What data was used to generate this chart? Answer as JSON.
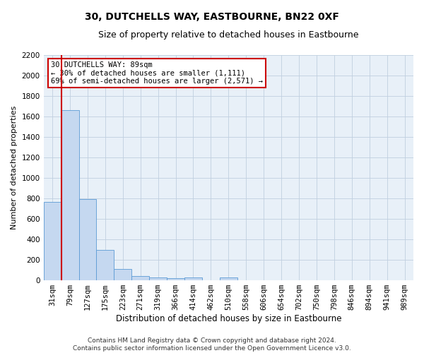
{
  "title": "30, DUTCHELLS WAY, EASTBOURNE, BN22 0XF",
  "subtitle": "Size of property relative to detached houses in Eastbourne",
  "xlabel": "Distribution of detached houses by size in Eastbourne",
  "ylabel": "Number of detached properties",
  "categories": [
    "31sqm",
    "79sqm",
    "127sqm",
    "175sqm",
    "223sqm",
    "271sqm",
    "319sqm",
    "366sqm",
    "414sqm",
    "462sqm",
    "510sqm",
    "558sqm",
    "606sqm",
    "654sqm",
    "702sqm",
    "750sqm",
    "798sqm",
    "846sqm",
    "894sqm",
    "941sqm",
    "989sqm"
  ],
  "values": [
    760,
    1660,
    790,
    295,
    105,
    40,
    25,
    20,
    25,
    0,
    25,
    0,
    0,
    0,
    0,
    0,
    0,
    0,
    0,
    0,
    0
  ],
  "bar_color": "#c5d8f0",
  "bar_edge_color": "#5b9bd5",
  "vline_color": "#cc0000",
  "annotation_text": "30 DUTCHELLS WAY: 89sqm\n← 30% of detached houses are smaller (1,111)\n69% of semi-detached houses are larger (2,571) →",
  "annotation_box_color": "#ffffff",
  "annotation_box_edge": "#cc0000",
  "ylim": [
    0,
    2200
  ],
  "yticks": [
    0,
    200,
    400,
    600,
    800,
    1000,
    1200,
    1400,
    1600,
    1800,
    2000,
    2200
  ],
  "footer": "Contains HM Land Registry data © Crown copyright and database right 2024.\nContains public sector information licensed under the Open Government Licence v3.0.",
  "title_fontsize": 10,
  "subtitle_fontsize": 9,
  "ylabel_fontsize": 8,
  "xlabel_fontsize": 8.5,
  "tick_fontsize": 7.5,
  "annot_fontsize": 7.5,
  "footer_fontsize": 6.5,
  "background_color": "#ffffff",
  "plot_bg_color": "#e8f0f8",
  "grid_color": "#c0cfe0"
}
